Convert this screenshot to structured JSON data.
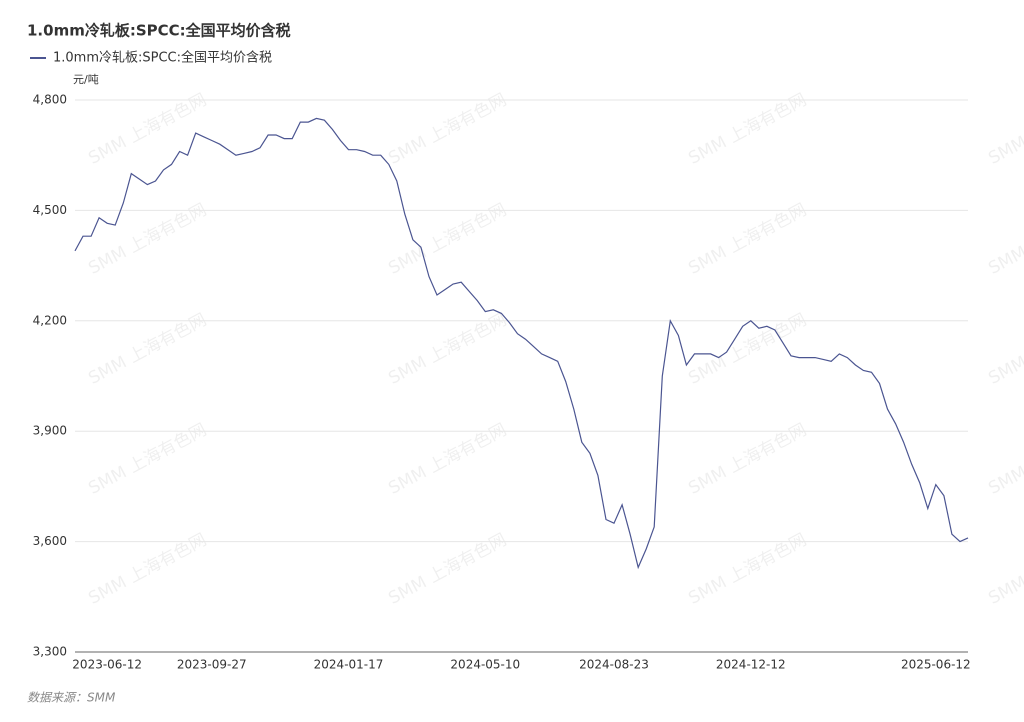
{
  "chart_data": {
    "type": "line",
    "title": "1.0mm冷轧板:SPCC:全国平均价含税",
    "y_axis_label": "元/吨",
    "source": "数据来源：SMM",
    "watermark": "SMM 上海有色网",
    "legend": "top-left",
    "grid": true,
    "ylim": [
      3300,
      4800
    ],
    "yticks": [
      {
        "value": 3300,
        "label": "3,300"
      },
      {
        "value": 3600,
        "label": "3,600"
      },
      {
        "value": 3900,
        "label": "3,900"
      },
      {
        "value": 4200,
        "label": "4,200"
      },
      {
        "value": 4500,
        "label": "4,500"
      },
      {
        "value": 4800,
        "label": "4,800"
      }
    ],
    "categories": [
      null,
      null,
      null,
      null,
      "2023-06-12",
      null,
      null,
      null,
      null,
      null,
      null,
      null,
      null,
      null,
      null,
      null,
      null,
      "2023-09-27",
      null,
      null,
      null,
      null,
      null,
      null,
      null,
      null,
      null,
      null,
      null,
      null,
      null,
      null,
      null,
      null,
      "2024-01-17",
      null,
      null,
      null,
      null,
      null,
      null,
      null,
      null,
      null,
      null,
      null,
      null,
      null,
      null,
      null,
      null,
      "2024-05-10",
      null,
      null,
      null,
      null,
      null,
      null,
      null,
      null,
      null,
      null,
      null,
      null,
      null,
      null,
      null,
      "2024-08-23",
      null,
      null,
      null,
      null,
      null,
      null,
      null,
      null,
      null,
      null,
      null,
      null,
      null,
      null,
      null,
      null,
      "2024-12-12",
      null,
      null,
      null,
      null,
      null,
      null,
      null,
      null,
      null,
      null,
      null,
      null,
      null,
      null,
      null,
      null,
      null,
      null,
      null,
      null,
      null,
      null,
      "2025-06-12",
      null,
      null,
      null,
      null
    ],
    "series": [
      {
        "name": "1.0mm冷轧板:SPCC:全国平均价含税",
        "color": "#4b5591",
        "values": [
          4390,
          4430,
          4430,
          4480,
          4465,
          4460,
          4520,
          4600,
          4585,
          4570,
          4580,
          4610,
          4625,
          4660,
          4650,
          4710,
          4700,
          4690,
          4680,
          4665,
          4650,
          4655,
          4660,
          4670,
          4705,
          4705,
          4695,
          4695,
          4740,
          4740,
          4750,
          4745,
          4720,
          4690,
          4665,
          4665,
          4660,
          4650,
          4650,
          4625,
          4580,
          4490,
          4420,
          4400,
          4320,
          4270,
          4285,
          4300,
          4305,
          4280,
          4255,
          4225,
          4230,
          4220,
          4195,
          4165,
          4150,
          4130,
          4110,
          4100,
          4090,
          4035,
          3960,
          3870,
          3840,
          3780,
          3660,
          3650,
          3700,
          3620,
          3530,
          3580,
          3640,
          4050,
          4200,
          4160,
          4080,
          4110,
          4110,
          4110,
          4100,
          4115,
          4150,
          4185,
          4200,
          4180,
          4185,
          4175,
          4140,
          4105,
          4100,
          4100,
          4100,
          4095,
          4090,
          4110,
          4100,
          4080,
          4065,
          4060,
          4030,
          3960,
          3920,
          3870,
          3810,
          3760,
          3690,
          3755,
          3725,
          3620,
          3600,
          3610
        ]
      }
    ]
  }
}
